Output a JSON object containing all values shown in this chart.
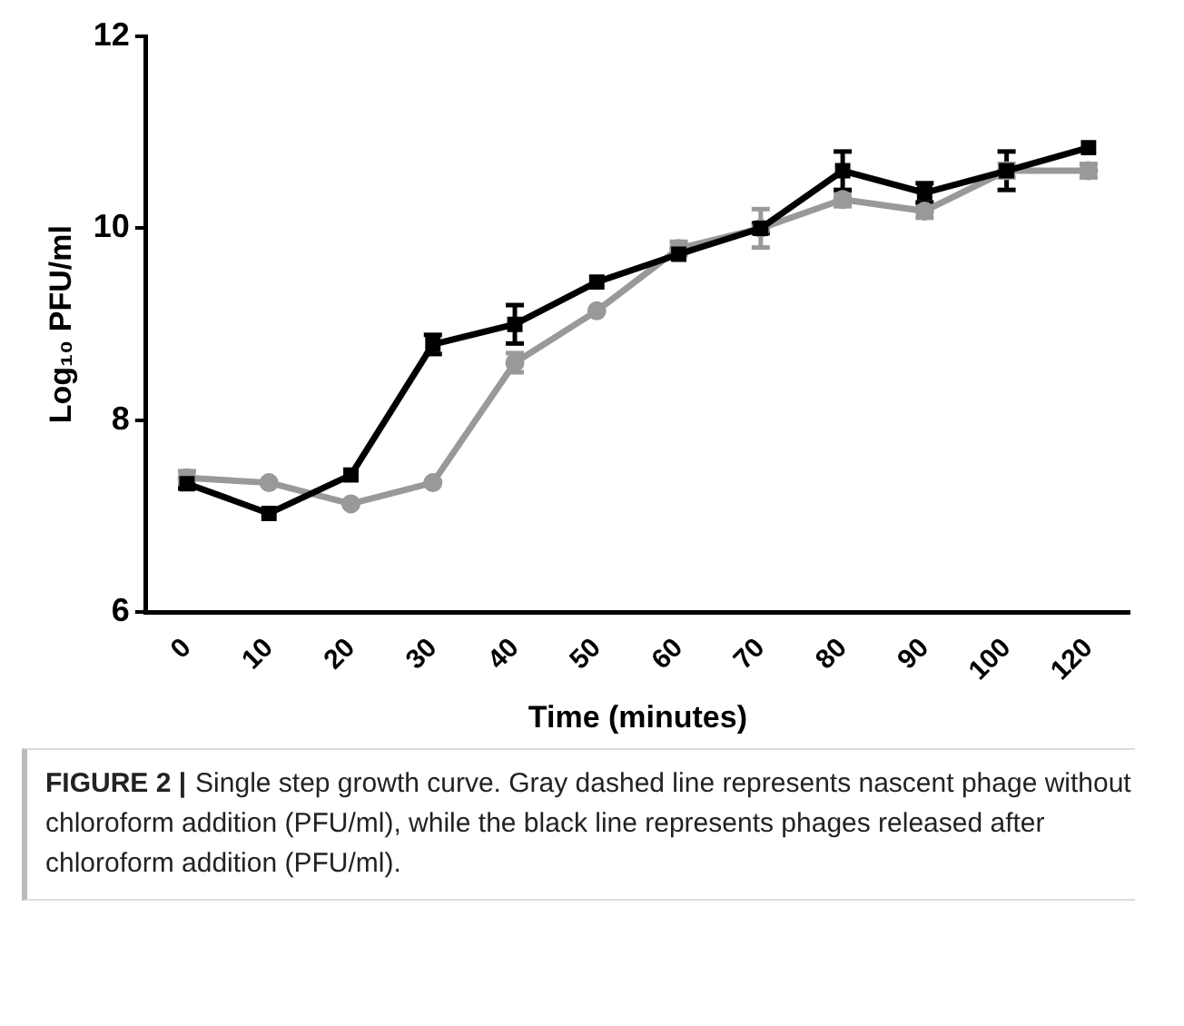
{
  "chart_data": {
    "type": "line",
    "xlabel": "Time (minutes)",
    "ylabel": "Log₁₀ PFU/ml",
    "categories": [
      "0",
      "10",
      "20",
      "30",
      "40",
      "50",
      "60",
      "70",
      "80",
      "90",
      "100",
      "120"
    ],
    "ylim": [
      6,
      12
    ],
    "yticks": [
      6,
      8,
      10,
      12
    ],
    "grid": false,
    "legend": false,
    "series": [
      {
        "color": "#999999",
        "marker": "circle",
        "values": [
          7.4,
          7.35,
          7.13,
          7.35,
          8.6,
          9.14,
          9.79,
          10.0,
          10.3,
          10.18,
          10.6,
          10.6
        ],
        "errors": [
          0.07,
          null,
          null,
          null,
          0.1,
          null,
          0.07,
          0.2,
          0.07,
          0.07,
          0.07,
          0.07
        ]
      },
      {
        "color": "#000000",
        "marker": "square",
        "values": [
          7.34,
          7.03,
          7.43,
          8.79,
          9.0,
          9.44,
          9.73,
          10.0,
          10.6,
          10.37,
          10.6,
          10.84
        ],
        "errors": [
          0.05,
          null,
          null,
          0.1,
          0.2,
          null,
          null,
          0.05,
          0.2,
          0.1,
          0.2,
          null
        ]
      }
    ],
    "annotations": [
      "FIGURE 2 |",
      "Single step growth curve. Gray dashed line represents nascent phage without chloroform addition (PFU/ml), while the black line represents phages released after chloroform addition (PFU/ml)."
    ]
  }
}
